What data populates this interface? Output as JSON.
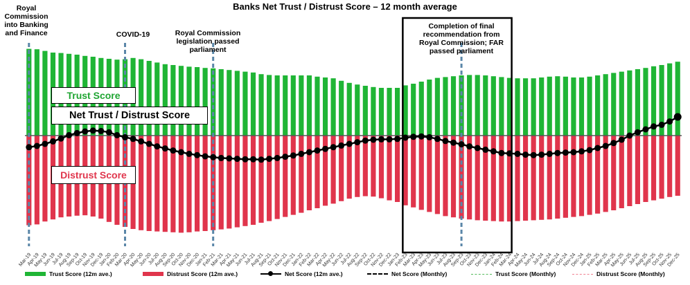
{
  "chart_data": {
    "type": "bar",
    "title": "Banks Net Trust / Distrust Score – 12 month average",
    "categories": [
      "Mar-19",
      "Apr-19",
      "May-19",
      "Jun-19",
      "Jul-19",
      "Aug-19",
      "Sep-19",
      "Oct-19",
      "Nov-19",
      "Dec-19",
      "Jan-20",
      "Feb-20",
      "Mar-20",
      "Apr-20",
      "May-20",
      "Jun-20",
      "Jul-20",
      "Aug-20",
      "Sep-20",
      "Oct-20",
      "Nov-20",
      "Dec-20",
      "Jan-21",
      "Feb-21",
      "Mar-21",
      "Apr-21",
      "May-21",
      "Jun-21",
      "Jul-21",
      "Aug-21",
      "Sep-21",
      "Oct-21",
      "Nov-21",
      "Dec-21",
      "Jan-22",
      "Feb-22",
      "Mar-22",
      "Apr-22",
      "May-22",
      "Jun-22",
      "Jul-22",
      "Aug-22",
      "Sep-22",
      "Oct-22",
      "Nov-22",
      "Dec-22",
      "Jan-23",
      "Feb-23",
      "Mar-23",
      "Apr-23",
      "May-23",
      "Jun-23",
      "Jul-23",
      "Aug-23",
      "Sep-23",
      "Oct-23",
      "Nov-23",
      "Dec-23",
      "Jan-24",
      "Feb-24",
      "Mar-24",
      "Apr-24",
      "May-24",
      "Jun-24",
      "Jul-24",
      "Aug-24",
      "Sep-24",
      "Oct-24",
      "Nov-24",
      "Dec-24",
      "Jan-25",
      "Feb-25",
      "Mar-25",
      "Apr-25",
      "May-25",
      "Jun-25",
      "Jul-25",
      "Aug-25",
      "Sep-25",
      "Oct-25",
      "Nov-25",
      "Dec-25"
    ],
    "series": [
      {
        "name": "Trust Score (12m ave.)",
        "color": "#1fb535",
        "values": [
          20.9,
          20.8,
          20.4,
          20.0,
          19.9,
          19.7,
          19.5,
          19.2,
          19.0,
          18.7,
          18.5,
          18.3,
          18.4,
          18.7,
          18.4,
          18.0,
          17.6,
          17.2,
          17.0,
          16.8,
          16.6,
          16.5,
          16.3,
          16.2,
          16.0,
          15.8,
          15.6,
          15.4,
          15.2,
          14.8,
          14.6,
          14.5,
          14.5,
          14.5,
          14.5,
          14.5,
          14.2,
          14.0,
          13.8,
          13.2,
          12.7,
          12.3,
          12.0,
          11.7,
          11.5,
          11.5,
          11.5,
          12.1,
          12.5,
          13.0,
          13.5,
          13.9,
          14.1,
          14.3,
          14.5,
          14.6,
          14.6,
          14.5,
          14.3,
          14.1,
          13.9,
          13.8,
          13.8,
          13.8,
          14.0,
          14.2,
          14.3,
          14.2,
          14.0,
          14.0,
          14.2,
          14.5,
          14.8,
          15.1,
          15.4,
          15.7,
          16.0,
          16.3,
          16.7,
          17.0,
          17.4,
          17.8
        ]
      },
      {
        "name": "Distrust Score (12m ave.)",
        "color": "#e0354c",
        "values": [
          -21.6,
          -21.4,
          -20.7,
          -20.2,
          -19.7,
          -19.5,
          -19.3,
          -19.2,
          -19.5,
          -20.0,
          -20.8,
          -21.5,
          -22.0,
          -22.5,
          -22.8,
          -23.0,
          -23.1,
          -23.2,
          -23.3,
          -23.4,
          -23.3,
          -23.1,
          -23.0,
          -22.8,
          -22.6,
          -22.4,
          -22.1,
          -21.8,
          -21.5,
          -21.0,
          -20.6,
          -20.1,
          -19.6,
          -19.1,
          -18.6,
          -18.0,
          -17.5,
          -16.9,
          -16.4,
          -15.8,
          -15.2,
          -14.8,
          -14.6,
          -14.7,
          -15.1,
          -15.6,
          -16.0,
          -16.8,
          -17.3,
          -17.9,
          -18.4,
          -18.9,
          -19.4,
          -19.7,
          -20.0,
          -20.2,
          -20.4,
          -20.5,
          -20.6,
          -20.7,
          -20.7,
          -20.6,
          -20.5,
          -20.4,
          -20.3,
          -20.2,
          -20.0,
          -19.8,
          -19.6,
          -19.4,
          -19.1,
          -18.8,
          -18.4,
          -18.0,
          -17.5,
          -17.0,
          -16.5,
          -16.0,
          -15.6,
          -15.2,
          -14.8,
          -14.5
        ]
      },
      {
        "name": "Net Score (12m ave.)",
        "color": "#000000",
        "values": [
          -2.8,
          -2.5,
          -2.0,
          -1.4,
          -0.7,
          0.1,
          0.6,
          1.0,
          1.2,
          1.1,
          0.8,
          0.1,
          -0.4,
          -0.8,
          -1.4,
          -2.0,
          -2.6,
          -3.1,
          -3.6,
          -4.0,
          -4.4,
          -4.7,
          -5.0,
          -5.2,
          -5.4,
          -5.5,
          -5.6,
          -5.7,
          -5.7,
          -5.8,
          -5.6,
          -5.4,
          -5.1,
          -4.8,
          -4.4,
          -4.0,
          -3.6,
          -3.2,
          -2.8,
          -2.4,
          -2.0,
          -1.6,
          -1.2,
          -1.0,
          -0.9,
          -0.9,
          -0.8,
          -0.5,
          -0.3,
          -0.2,
          -0.4,
          -0.8,
          -1.3,
          -1.7,
          -2.1,
          -2.6,
          -3.0,
          -3.4,
          -3.8,
          -4.2,
          -4.3,
          -4.4,
          -4.6,
          -4.7,
          -4.6,
          -4.4,
          -4.2,
          -4.1,
          -4.0,
          -3.8,
          -3.5,
          -3.0,
          -2.5,
          -1.8,
          -1.0,
          0.0,
          0.8,
          1.5,
          2.2,
          2.6,
          3.4,
          4.5
        ]
      }
    ],
    "ylim": [
      -25,
      22
    ],
    "grid": false,
    "legend_placement": "bottom",
    "zero_line": true,
    "event_lines": [
      {
        "category": "Mar-19",
        "label": "Royal Commission into Banking and Finance"
      },
      {
        "category": "Mar-20",
        "label": "COVID-19"
      },
      {
        "category": "Feb-21",
        "label": "Royal Commission legislation passed parliament"
      },
      {
        "category": "Sep-23",
        "label": "Completion of final recommendation from Royal Commission; FAR passed parliament"
      }
    ],
    "highlight_box": {
      "from": "Feb-23",
      "to": "Mar-24"
    },
    "labels": {
      "trust": "Trust Score",
      "net": "Net Trust / Distrust Score",
      "distrust": "Distrust Score"
    },
    "legend": [
      {
        "label": "Trust Score (12m ave.)",
        "style": "bar",
        "color": "#1fb535"
      },
      {
        "label": "Distrust Score (12m ave.)",
        "style": "bar",
        "color": "#e0354c"
      },
      {
        "label": "Net Score (12m ave.)",
        "style": "line-marker",
        "color": "#000000"
      },
      {
        "label": "Net Score (Monthly)",
        "style": "dashed",
        "color": "#000000"
      },
      {
        "label": "Trust Score (Monthly)",
        "style": "dashed",
        "color": "#52b95a"
      },
      {
        "label": "Distrust Score (Monthly)",
        "style": "dashed",
        "color": "#f08090"
      }
    ]
  }
}
